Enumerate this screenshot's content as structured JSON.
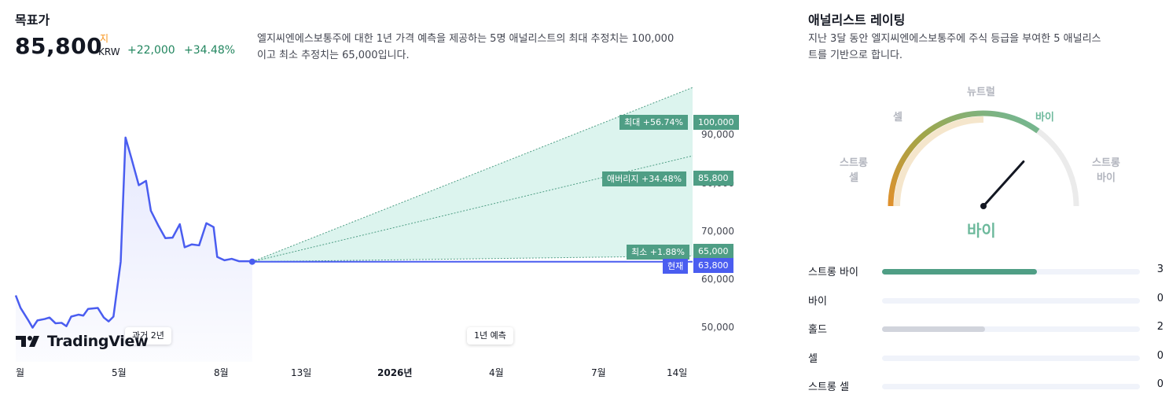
{
  "target": {
    "title": "목표가",
    "price": "85,800",
    "currency_sup": "지",
    "currency": "KRW",
    "change_abs": "+22,000",
    "change_pct": "+34.48%",
    "description_line1": "엘지씨엔에스보통주에 대한 1년 가격 예측을 제공하는 5명 애널리스트의 최대 추정치는 100,000",
    "description_line2": "이고 최소 추정치는 65,000입니다."
  },
  "chart_data": {
    "type": "line",
    "history_x": [
      "2025-02-28",
      "2025-03-04",
      "2025-03-10",
      "2025-03-14",
      "2025-03-18",
      "2025-03-24",
      "2025-03-28",
      "2025-04-02",
      "2025-04-07",
      "2025-04-11",
      "2025-04-15",
      "2025-04-21",
      "2025-04-25",
      "2025-04-29",
      "2025-05-07",
      "2025-05-12",
      "2025-05-16",
      "2025-05-20",
      "2025-05-26",
      "2025-05-30",
      "2025-06-04",
      "2025-06-10",
      "2025-06-16",
      "2025-06-20",
      "2025-06-26",
      "2025-07-02",
      "2025-07-08",
      "2025-07-14",
      "2025-07-18",
      "2025-07-24",
      "2025-07-30",
      "2025-08-05",
      "2025-08-11",
      "2025-08-14",
      "2025-08-20",
      "2025-08-26",
      "2025-09-01",
      "2025-09-05",
      "2025-09-10",
      "2025-09-12"
    ],
    "history_y": [
      56800,
      54200,
      51800,
      50100,
      51600,
      51900,
      52200,
      51000,
      51100,
      50400,
      52400,
      52800,
      52600,
      54000,
      54200,
      52200,
      51400,
      52400,
      63800,
      89600,
      85200,
      79700,
      80600,
      74400,
      71400,
      68700,
      68800,
      71600,
      66800,
      67400,
      67200,
      71800,
      71000,
      64800,
      64100,
      64400,
      63900,
      63900,
      63900,
      63800
    ],
    "forecast_end": "2026-09-12",
    "forecast": {
      "max": {
        "label": "최대 +56.74%",
        "value": 100000,
        "value_label": "100,000"
      },
      "average": {
        "label": "애버리지 +34.48%",
        "value": 85800,
        "value_label": "85,800"
      },
      "min": {
        "label": "최소 +1.88%",
        "value": 65000,
        "value_label": "65,000"
      },
      "current": {
        "label": "현재",
        "value": 63800,
        "value_label": "63,800"
      }
    },
    "y_ticks": [
      "90,000",
      "80,000",
      "70,000",
      "60,000",
      "50,000"
    ],
    "y_tick_values": [
      90000,
      80000,
      70000,
      60000,
      50000
    ],
    "x_ticks": [
      "월",
      "5월",
      "8월",
      "13일",
      "2026년",
      "4월",
      "7월",
      "14일"
    ],
    "ylim": [
      43000,
      102000
    ],
    "grid": false,
    "colors": {
      "history": "#4a5df0",
      "forecast_fill": "#dcf4ee",
      "forecast_line": "#4f9e85",
      "current": "#4a5df0"
    }
  },
  "chart_labels": {
    "past_pill": "과거 2년",
    "forecast_pill": "1년 예측",
    "brand": "TradingView"
  },
  "ratings": {
    "title": "애널리스트 레이팅",
    "description_line1": "지난 3달 동안 엘지씨엔에스보통주에 주식 등급을 부여한 5 애널리스",
    "description_line2": "트를 기반으로 합니다.",
    "gauge": {
      "strong_sell": "스트롱\n셀",
      "sell": "셀",
      "neutral": "뉴트럴",
      "buy": "바이",
      "strong_buy": "스트롱\n바이",
      "result": "바이",
      "score": 0.6
    },
    "rows": [
      {
        "label": "스트롱 바이",
        "count": "3",
        "value": 3,
        "color": "#4f9e85"
      },
      {
        "label": "바이",
        "count": "0",
        "value": 0,
        "color": "#6db99c"
      },
      {
        "label": "홀드",
        "count": "2",
        "value": 2,
        "color": "#d1d4dc"
      },
      {
        "label": "셀",
        "count": "0",
        "value": 0,
        "color": "#f5a55a"
      },
      {
        "label": "스트롱 셀",
        "count": "0",
        "value": 0,
        "color": "#e07b39"
      }
    ],
    "max_count": 5
  }
}
